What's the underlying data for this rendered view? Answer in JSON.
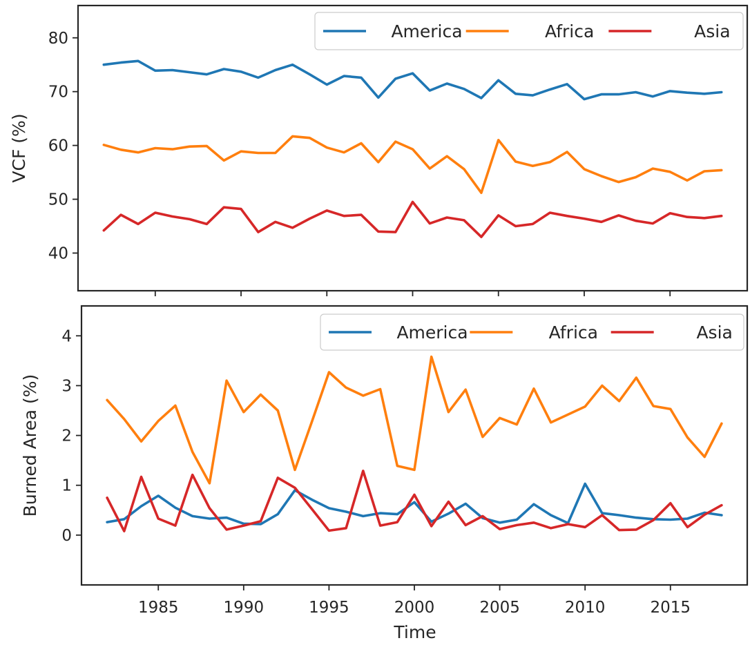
{
  "figure": {
    "xlabel": "Time"
  },
  "colors": {
    "America": "#1f77b4",
    "Africa": "#ff7f0e",
    "Asia": "#d62728"
  },
  "chart_data": [
    {
      "type": "line",
      "title": "",
      "xlabel": "",
      "ylabel": "VCF (%)",
      "xlim": [
        1980.5,
        2019.5
      ],
      "ylim": [
        33,
        86
      ],
      "yticks": [
        40,
        50,
        60,
        70,
        80
      ],
      "xticks": [
        1985,
        1990,
        1995,
        2000,
        2005,
        2010,
        2015
      ],
      "show_xtick_labels": false,
      "grid": false,
      "legend": {
        "placement": "top-right",
        "ncol": 3
      },
      "x": [
        1982,
        1983,
        1984,
        1985,
        1986,
        1987,
        1988,
        1989,
        1990,
        1991,
        1992,
        1993,
        1994,
        1995,
        1996,
        1997,
        1998,
        1999,
        2000,
        2001,
        2002,
        2003,
        2004,
        2005,
        2006,
        2007,
        2008,
        2009,
        2010,
        2011,
        2012,
        2013,
        2014,
        2015,
        2016,
        2017,
        2018
      ],
      "series": [
        {
          "name": "America",
          "color": "#1f77b4",
          "values": [
            75.0,
            75.4,
            75.7,
            73.9,
            74.0,
            73.6,
            73.2,
            74.2,
            73.7,
            72.6,
            74.0,
            75.0,
            73.2,
            71.3,
            72.9,
            72.6,
            68.9,
            72.4,
            73.4,
            70.2,
            71.5,
            70.5,
            68.8,
            72.1,
            69.6,
            69.3,
            70.4,
            71.4,
            68.6,
            69.5,
            69.5,
            69.9,
            69.1,
            70.1,
            69.8,
            69.6,
            69.9
          ]
        },
        {
          "name": "Africa",
          "color": "#ff7f0e",
          "values": [
            60.1,
            59.2,
            58.7,
            59.5,
            59.3,
            59.8,
            59.9,
            57.2,
            58.9,
            58.6,
            58.6,
            61.7,
            61.4,
            59.6,
            58.7,
            60.4,
            56.9,
            60.7,
            59.3,
            55.7,
            58.0,
            55.6,
            51.2,
            61.0,
            57.0,
            56.2,
            56.9,
            58.8,
            55.6,
            54.3,
            53.2,
            54.1,
            55.7,
            55.1,
            53.5,
            55.2,
            55.4
          ]
        },
        {
          "name": "Asia",
          "color": "#d62728",
          "values": [
            44.2,
            47.1,
            45.4,
            47.5,
            46.8,
            46.3,
            45.4,
            48.5,
            48.2,
            43.9,
            45.8,
            44.7,
            46.4,
            47.9,
            46.9,
            47.1,
            44.0,
            43.9,
            49.5,
            45.5,
            46.6,
            46.1,
            43.0,
            47.0,
            45.0,
            45.4,
            47.5,
            46.9,
            46.4,
            45.8,
            47.0,
            46.0,
            45.5,
            47.4,
            46.7,
            46.5,
            46.9
          ]
        }
      ]
    },
    {
      "type": "line",
      "title": "",
      "xlabel": "Time",
      "ylabel": "Burned Area (%)",
      "xlim": [
        1980.5,
        2019.5
      ],
      "ylim": [
        -1.0,
        4.6
      ],
      "yticks": [
        0,
        1,
        2,
        3,
        4
      ],
      "xticks": [
        1985,
        1990,
        1995,
        2000,
        2005,
        2010,
        2015
      ],
      "show_xtick_labels": true,
      "grid": false,
      "legend": {
        "placement": "top-right",
        "ncol": 3
      },
      "x": [
        1982,
        1983,
        1984,
        1985,
        1986,
        1987,
        1988,
        1989,
        1990,
        1991,
        1992,
        1993,
        1994,
        1995,
        1996,
        1997,
        1998,
        1999,
        2000,
        2001,
        2002,
        2003,
        2004,
        2005,
        2006,
        2007,
        2008,
        2009,
        2010,
        2011,
        2012,
        2013,
        2014,
        2015,
        2016,
        2017,
        2018
      ],
      "series": [
        {
          "name": "America",
          "color": "#1f77b4",
          "values": [
            0.26,
            0.32,
            0.58,
            0.79,
            0.55,
            0.38,
            0.33,
            0.35,
            0.23,
            0.22,
            0.42,
            0.9,
            0.71,
            0.54,
            0.47,
            0.38,
            0.44,
            0.42,
            0.66,
            0.27,
            0.43,
            0.63,
            0.34,
            0.25,
            0.31,
            0.62,
            0.4,
            0.24,
            1.03,
            0.44,
            0.4,
            0.35,
            0.32,
            0.31,
            0.33,
            0.45,
            0.4
          ]
        },
        {
          "name": "Africa",
          "color": "#ff7f0e",
          "values": [
            2.71,
            2.33,
            1.88,
            2.29,
            2.6,
            1.67,
            1.04,
            3.1,
            2.47,
            2.82,
            2.5,
            1.31,
            2.28,
            3.27,
            2.96,
            2.8,
            2.93,
            1.39,
            1.31,
            3.58,
            2.47,
            2.92,
            1.97,
            2.35,
            2.22,
            2.94,
            2.26,
            2.42,
            2.58,
            3.0,
            2.69,
            3.16,
            2.59,
            2.53,
            1.96,
            1.57,
            2.24
          ]
        },
        {
          "name": "Asia",
          "color": "#d62728",
          "values": [
            0.75,
            0.08,
            1.17,
            0.33,
            0.19,
            1.21,
            0.54,
            0.11,
            0.19,
            0.28,
            1.15,
            0.95,
            0.52,
            0.09,
            0.14,
            1.29,
            0.19,
            0.26,
            0.81,
            0.18,
            0.67,
            0.2,
            0.38,
            0.12,
            0.2,
            0.25,
            0.14,
            0.22,
            0.16,
            0.4,
            0.1,
            0.11,
            0.3,
            0.64,
            0.16,
            0.41,
            0.6
          ]
        }
      ]
    }
  ]
}
